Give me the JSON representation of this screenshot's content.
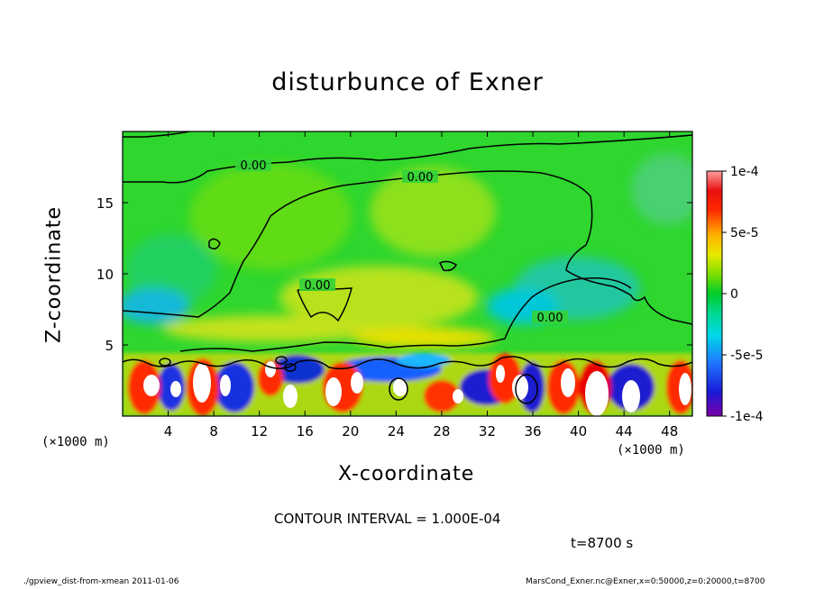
{
  "chart_data": {
    "type": "heatmap",
    "title": "disturbunce of Exner",
    "xlabel": "X-coordinate",
    "ylabel": "Z-coordinate",
    "x_unit": "(×1000 m)",
    "xlim": [
      0,
      50
    ],
    "ylim": [
      0,
      20
    ],
    "x_ticks": [
      4,
      8,
      12,
      16,
      20,
      24,
      28,
      32,
      36,
      40,
      44,
      48
    ],
    "y_ticks": [
      5,
      10,
      15
    ],
    "colorbar": {
      "min": -0.0001,
      "max": 0.0001,
      "tick_labels": [
        "1e-4",
        "5e-5",
        "0",
        "-5e-5",
        "-1e-4"
      ],
      "tick_values": [
        0.0001,
        5e-05,
        0,
        -5e-05,
        -0.0001
      ]
    },
    "contour_label": "0.00",
    "contour_interval_text": "CONTOUR INTERVAL = 1.000E-04",
    "time_text": "t=8700 s"
  },
  "footer": {
    "left": "./gpview_dist-from-xmean  2011-01-06",
    "right": "MarsCond_Exner.nc@Exner,x=0:50000,z=0:20000,t=8700"
  }
}
